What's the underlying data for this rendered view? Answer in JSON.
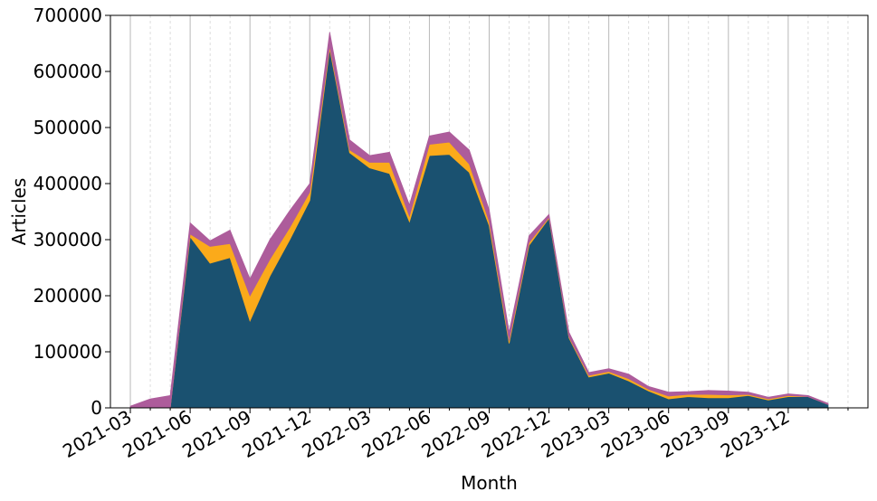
{
  "chart_data": {
    "type": "area",
    "stacked": true,
    "xlabel": "Month",
    "ylabel": "Articles",
    "ylim": [
      0,
      700000
    ],
    "y_ticks": [
      0,
      100000,
      200000,
      300000,
      400000,
      500000,
      600000,
      700000
    ],
    "y_tick_labels": [
      "0",
      "100000",
      "200000",
      "300000",
      "400000",
      "500000",
      "600000",
      "700000"
    ],
    "x_tick_labels": [
      "2021-03",
      "2021-06",
      "2021-09",
      "2021-12",
      "2022-03",
      "2022-06",
      "2022-09",
      "2022-12",
      "2023-03",
      "2023-06",
      "2023-09",
      "2023-12"
    ],
    "x_tick_months": [
      "2021-03",
      "2021-06",
      "2021-09",
      "2021-12",
      "2022-03",
      "2022-06",
      "2022-09",
      "2022-12",
      "2023-03",
      "2023-06",
      "2023-09",
      "2023-12"
    ],
    "x_range": [
      "2021-02",
      "2024-04"
    ],
    "grid": "vertical",
    "legend": "none",
    "months": [
      "2021-03",
      "2021-04",
      "2021-05",
      "2021-06",
      "2021-07",
      "2021-08",
      "2021-09",
      "2021-10",
      "2021-11",
      "2021-12",
      "2022-01",
      "2022-02",
      "2022-03",
      "2022-04",
      "2022-05",
      "2022-06",
      "2022-07",
      "2022-08",
      "2022-09",
      "2022-10",
      "2022-11",
      "2022-12",
      "2023-01",
      "2023-02",
      "2023-03",
      "2023-04",
      "2023-05",
      "2023-06",
      "2023-07",
      "2023-08",
      "2023-09",
      "2023-10",
      "2023-11",
      "2023-12",
      "2024-01",
      "2024-02"
    ],
    "series": [
      {
        "color": "#1a5170",
        "values": [
          0,
          0,
          0,
          305000,
          258000,
          268000,
          155000,
          235000,
          300000,
          370000,
          640000,
          455000,
          428000,
          418000,
          332000,
          450000,
          452000,
          420000,
          325000,
          115000,
          290000,
          338000,
          125000,
          55000,
          62000,
          48000,
          30000,
          16000,
          20000,
          18000,
          18000,
          22000,
          14000,
          20000,
          20000,
          6000
        ]
      },
      {
        "color": "#fbaa1a",
        "values": [
          0,
          0,
          0,
          5000,
          30000,
          25000,
          45000,
          30000,
          22000,
          15000,
          5000,
          5000,
          10000,
          20000,
          10000,
          20000,
          22000,
          15000,
          8000,
          5000,
          5000,
          2000,
          2000,
          3000,
          3000,
          4000,
          3000,
          5000,
          4000,
          6000,
          5000,
          2000,
          2000,
          2000,
          0,
          0
        ]
      },
      {
        "color": "#ad5c9b",
        "values": [
          3000,
          16000,
          22000,
          20000,
          10000,
          24000,
          30000,
          35000,
          30000,
          15000,
          25000,
          18000,
          12000,
          18000,
          20000,
          15000,
          18000,
          25000,
          20000,
          15000,
          12000,
          5000,
          8000,
          5000,
          5000,
          8000,
          5000,
          7000,
          5000,
          7000,
          7000,
          4000,
          3000,
          3000,
          2000,
          2000
        ]
      }
    ]
  }
}
